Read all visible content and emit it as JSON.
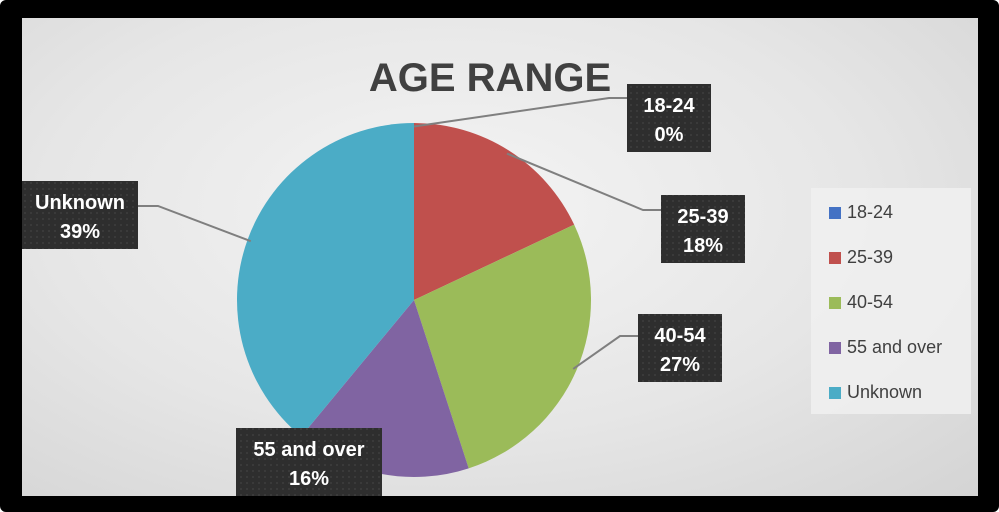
{
  "chart_data": {
    "type": "pie",
    "title": "AGE RANGE",
    "categories": [
      "18-24",
      "25-39",
      "40-54",
      "55 and over",
      "Unknown"
    ],
    "values": [
      0,
      18,
      27,
      16,
      39
    ],
    "data_labels": [
      {
        "category": "18-24",
        "percent": "0%"
      },
      {
        "category": "25-39",
        "percent": "18%"
      },
      {
        "category": "40-54",
        "percent": "27%"
      },
      {
        "category": "55 and over",
        "percent": "16%"
      },
      {
        "category": "Unknown",
        "percent": "39%"
      }
    ],
    "colors": [
      "#4472c4",
      "#c0504d",
      "#9bbb59",
      "#8064a2",
      "#4bacc6"
    ],
    "legend": {
      "position": "right"
    },
    "start_angle": "top, clockwise"
  }
}
